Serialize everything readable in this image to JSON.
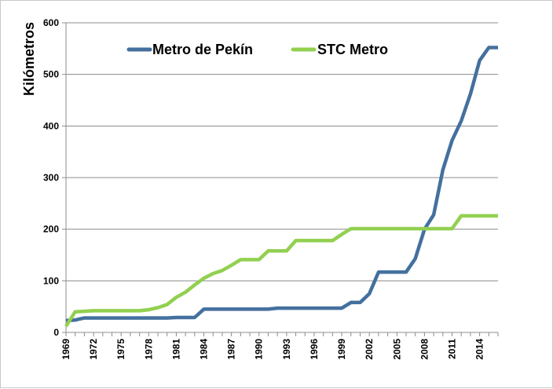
{
  "chart_data": {
    "type": "line",
    "title": "",
    "xlabel": "",
    "ylabel": "Kilómetros",
    "xlim": [
      1969,
      2016
    ],
    "ylim": [
      0,
      600
    ],
    "y_ticks": [
      0,
      100,
      200,
      300,
      400,
      500,
      600
    ],
    "x_ticks": [
      "1969",
      "1972",
      "1975",
      "1978",
      "1981",
      "1984",
      "1987",
      "1990",
      "1993",
      "1996",
      "1999",
      "2002",
      "2005",
      "2008",
      "2011",
      "2014"
    ],
    "grid": "horizontal",
    "legend_position": "top",
    "series": [
      {
        "name": "Metro de Pekín",
        "color": "#44709e",
        "x": [
          1969,
          1970,
          1971,
          1972,
          1973,
          1974,
          1975,
          1976,
          1977,
          1978,
          1979,
          1980,
          1981,
          1982,
          1983,
          1984,
          1985,
          1986,
          1987,
          1988,
          1989,
          1990,
          1991,
          1992,
          1993,
          1994,
          1995,
          1996,
          1997,
          1998,
          1999,
          2000,
          2001,
          2002,
          2003,
          2004,
          2005,
          2006,
          2007,
          2008,
          2009,
          2010,
          2011,
          2012,
          2013,
          2014,
          2015,
          2016
        ],
        "values": [
          23,
          24,
          28,
          28,
          28,
          28,
          28,
          28,
          28,
          28,
          28,
          28,
          29,
          29,
          29,
          45,
          45,
          45,
          45,
          45,
          45,
          45,
          45,
          47,
          47,
          47,
          47,
          47,
          47,
          47,
          47,
          58,
          58,
          75,
          117,
          117,
          117,
          117,
          143,
          200,
          228,
          315,
          372,
          410,
          462,
          527,
          552,
          552
        ]
      },
      {
        "name": "STC Metro",
        "color": "#92d050",
        "x": [
          1969,
          1970,
          1971,
          1972,
          1973,
          1974,
          1975,
          1976,
          1977,
          1978,
          1979,
          1980,
          1981,
          1982,
          1983,
          1984,
          1985,
          1986,
          1987,
          1988,
          1989,
          1990,
          1991,
          1992,
          1993,
          1994,
          1995,
          1996,
          1997,
          1998,
          1999,
          2000,
          2001,
          2002,
          2003,
          2004,
          2005,
          2006,
          2007,
          2008,
          2009,
          2010,
          2011,
          2012,
          2013,
          2014,
          2015,
          2016
        ],
        "values": [
          12,
          40,
          41,
          42,
          42,
          42,
          42,
          42,
          42,
          44,
          48,
          54,
          68,
          78,
          92,
          105,
          114,
          120,
          130,
          141,
          141,
          141,
          158,
          158,
          158,
          178,
          178,
          178,
          178,
          178,
          190,
          201,
          201,
          201,
          201,
          201,
          201,
          201,
          201,
          201,
          201,
          201,
          201,
          226,
          226,
          226,
          226,
          226
        ]
      }
    ]
  }
}
